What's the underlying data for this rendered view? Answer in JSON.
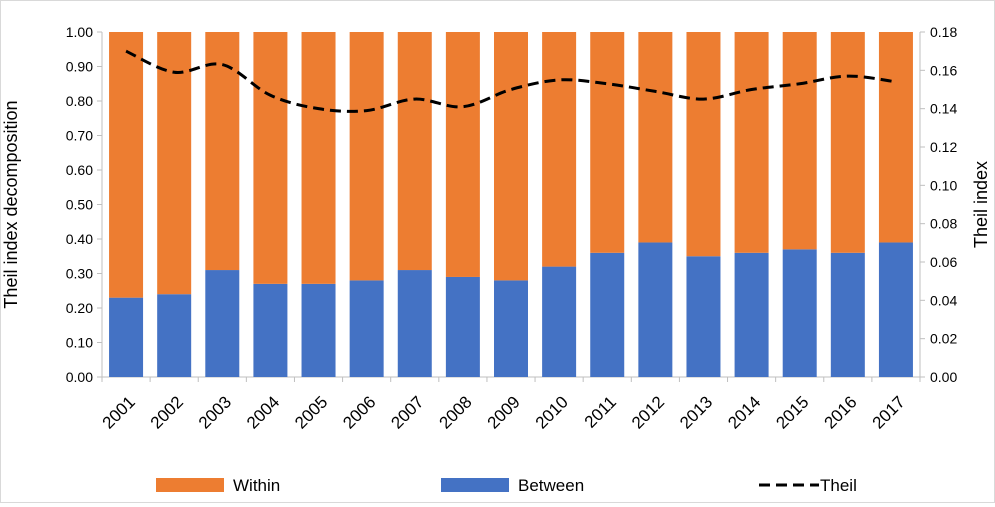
{
  "chart_data": {
    "type": "bar",
    "stacked": true,
    "categories": [
      "2001",
      "2002",
      "2003",
      "2004",
      "2005",
      "2006",
      "2007",
      "2008",
      "2009",
      "2010",
      "2011",
      "2012",
      "2013",
      "2014",
      "2015",
      "2016",
      "2017"
    ],
    "series": [
      {
        "name": "Between",
        "kind": "bar",
        "axis": "left",
        "color": "#4472c4",
        "values": [
          0.23,
          0.24,
          0.31,
          0.27,
          0.27,
          0.28,
          0.31,
          0.29,
          0.28,
          0.32,
          0.36,
          0.39,
          0.35,
          0.36,
          0.37,
          0.36,
          0.39
        ]
      },
      {
        "name": "Within",
        "kind": "bar",
        "axis": "left",
        "color": "#ed7d31",
        "values": [
          0.77,
          0.76,
          0.69,
          0.73,
          0.73,
          0.72,
          0.69,
          0.71,
          0.72,
          0.68,
          0.64,
          0.61,
          0.65,
          0.64,
          0.63,
          0.64,
          0.61
        ]
      },
      {
        "name": "Theil",
        "kind": "line",
        "axis": "right",
        "color": "#000000",
        "dash": "dashed",
        "values": [
          0.17,
          0.159,
          0.163,
          0.147,
          0.14,
          0.139,
          0.145,
          0.141,
          0.15,
          0.155,
          0.153,
          0.149,
          0.145,
          0.15,
          0.153,
          0.157,
          0.154
        ]
      }
    ],
    "ylabel": "Theil index decomposition",
    "y2label": "Theil index",
    "ylim": [
      0,
      1.0
    ],
    "y2lim": [
      0,
      0.18
    ],
    "yticks": [
      "0.00",
      "0.10",
      "0.20",
      "0.30",
      "0.40",
      "0.50",
      "0.60",
      "0.70",
      "0.80",
      "0.90",
      "1.00"
    ],
    "y2ticks": [
      "0.00",
      "0.02",
      "0.04",
      "0.06",
      "0.08",
      "0.10",
      "0.12",
      "0.14",
      "0.16",
      "0.18"
    ],
    "grid": false,
    "legend": {
      "position": "bottom",
      "items": [
        "Within",
        "Between",
        "Theil"
      ]
    }
  }
}
